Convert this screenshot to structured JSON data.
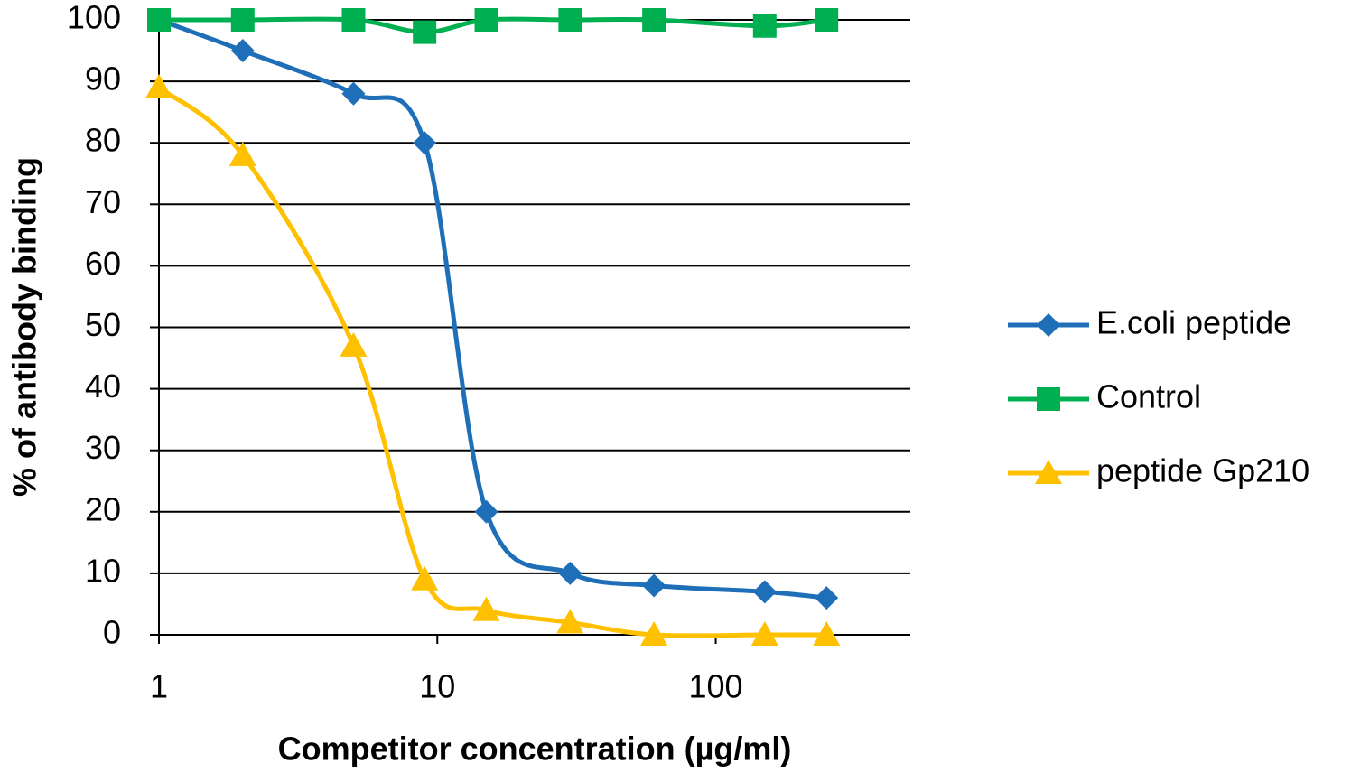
{
  "chart_data": {
    "type": "line",
    "x_label": "Competitor concentration (µg/ml)",
    "y_label": "% of antibody binding",
    "x": [
      1,
      2,
      5,
      9,
      15,
      30,
      60,
      150,
      250
    ],
    "xscale": "log",
    "xlim": [
      1,
      500
    ],
    "xticks": [
      1,
      10,
      100
    ],
    "ylim": [
      0,
      100
    ],
    "yticks": [
      0,
      10,
      20,
      30,
      40,
      50,
      60,
      70,
      80,
      90,
      100
    ],
    "grid": true,
    "smooth": true,
    "legend": "right",
    "series": [
      {
        "name": "E.coli peptide",
        "color": "#1f6fb8",
        "marker": "diamond",
        "values": [
          100,
          95,
          88,
          80,
          20,
          10,
          8,
          7,
          6
        ]
      },
      {
        "name": "Control",
        "color": "#00b050",
        "marker": "square",
        "values": [
          100,
          100,
          100,
          98,
          100,
          100,
          100,
          99,
          100
        ]
      },
      {
        "name": "peptide Gp210",
        "color": "#ffc000",
        "marker": "triangle",
        "values": [
          89,
          78,
          47,
          9,
          4,
          2,
          0,
          0,
          0
        ]
      }
    ]
  }
}
